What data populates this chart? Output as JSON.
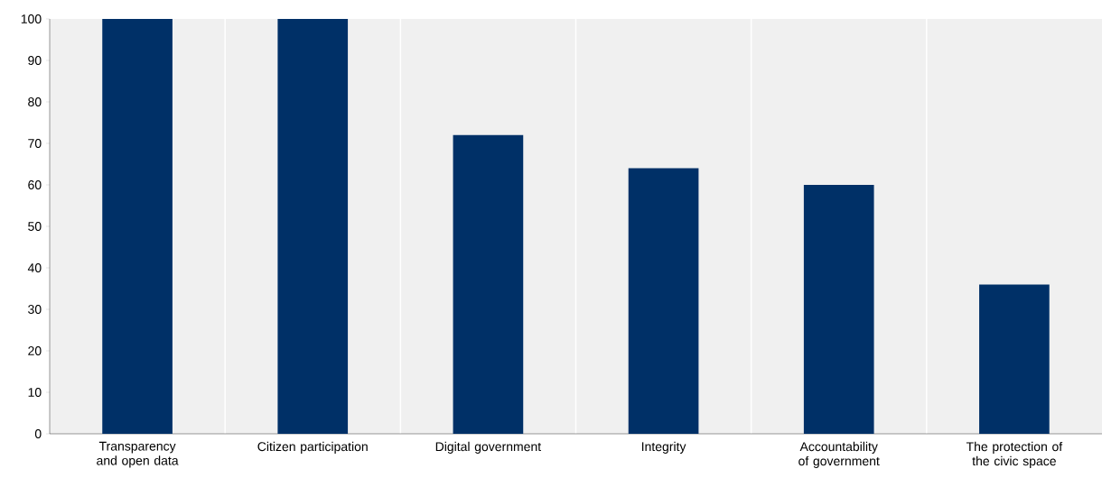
{
  "chart_data": {
    "type": "bar",
    "categories": [
      "Transparency and open data",
      "Citizen participation",
      "Digital government",
      "Integrity",
      "Accountability of government",
      "The protection of the civic space"
    ],
    "values": [
      100,
      100,
      72,
      64,
      60,
      36
    ],
    "color": "#003067",
    "ylim": [
      0,
      100
    ],
    "yticks": [
      0,
      10,
      20,
      30,
      40,
      50,
      60,
      70,
      80,
      90,
      100
    ],
    "grid": "x"
  }
}
